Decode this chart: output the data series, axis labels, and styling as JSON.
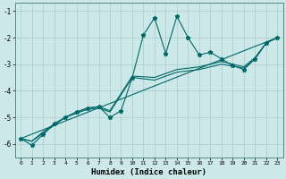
{
  "xlabel": "Humidex (Indice chaleur)",
  "bg_color": "#cce8e8",
  "grid_color": "#aacccc",
  "line_color": "#006868",
  "xlim": [
    -0.5,
    23.5
  ],
  "ylim": [
    -6.5,
    -0.7
  ],
  "xticks": [
    0,
    1,
    2,
    3,
    4,
    5,
    6,
    7,
    8,
    9,
    10,
    11,
    12,
    13,
    14,
    15,
    16,
    17,
    18,
    19,
    20,
    21,
    22,
    23
  ],
  "yticks": [
    -6,
    -5,
    -4,
    -3,
    -2,
    -1
  ],
  "line1_x": [
    0,
    1,
    2,
    3,
    4,
    5,
    6,
    7,
    8,
    9,
    10,
    11,
    12,
    13,
    14,
    15,
    16,
    17,
    18,
    19,
    20,
    21,
    22,
    23
  ],
  "line1_y": [
    -5.8,
    -6.05,
    -5.65,
    -5.25,
    -5.0,
    -4.8,
    -4.65,
    -4.6,
    -5.0,
    -4.75,
    -3.5,
    -1.9,
    -1.25,
    -2.6,
    -1.2,
    -2.0,
    -2.65,
    -2.55,
    -2.8,
    -3.05,
    -3.2,
    -2.8,
    -2.2,
    -2.0
  ],
  "line2_x": [
    0,
    23
  ],
  "line2_y": [
    -5.8,
    -2.0
  ],
  "line3_x": [
    0,
    1,
    2,
    3,
    4,
    5,
    6,
    7,
    8,
    10,
    12,
    14,
    16,
    18,
    20,
    21,
    22,
    23
  ],
  "line3_y": [
    -5.8,
    -5.9,
    -5.6,
    -5.3,
    -5.0,
    -4.85,
    -4.7,
    -4.65,
    -4.8,
    -3.5,
    -3.6,
    -3.3,
    -3.2,
    -3.0,
    -3.15,
    -2.8,
    -2.2,
    -2.0
  ],
  "line4_x": [
    0,
    1,
    2,
    3,
    4,
    5,
    6,
    7,
    8,
    10,
    12,
    14,
    16,
    18,
    20,
    21,
    22,
    23
  ],
  "line4_y": [
    -5.8,
    -5.9,
    -5.55,
    -5.25,
    -5.0,
    -4.8,
    -4.65,
    -4.6,
    -4.75,
    -3.45,
    -3.5,
    -3.2,
    -3.1,
    -2.9,
    -3.1,
    -2.75,
    -2.2,
    -2.0
  ]
}
